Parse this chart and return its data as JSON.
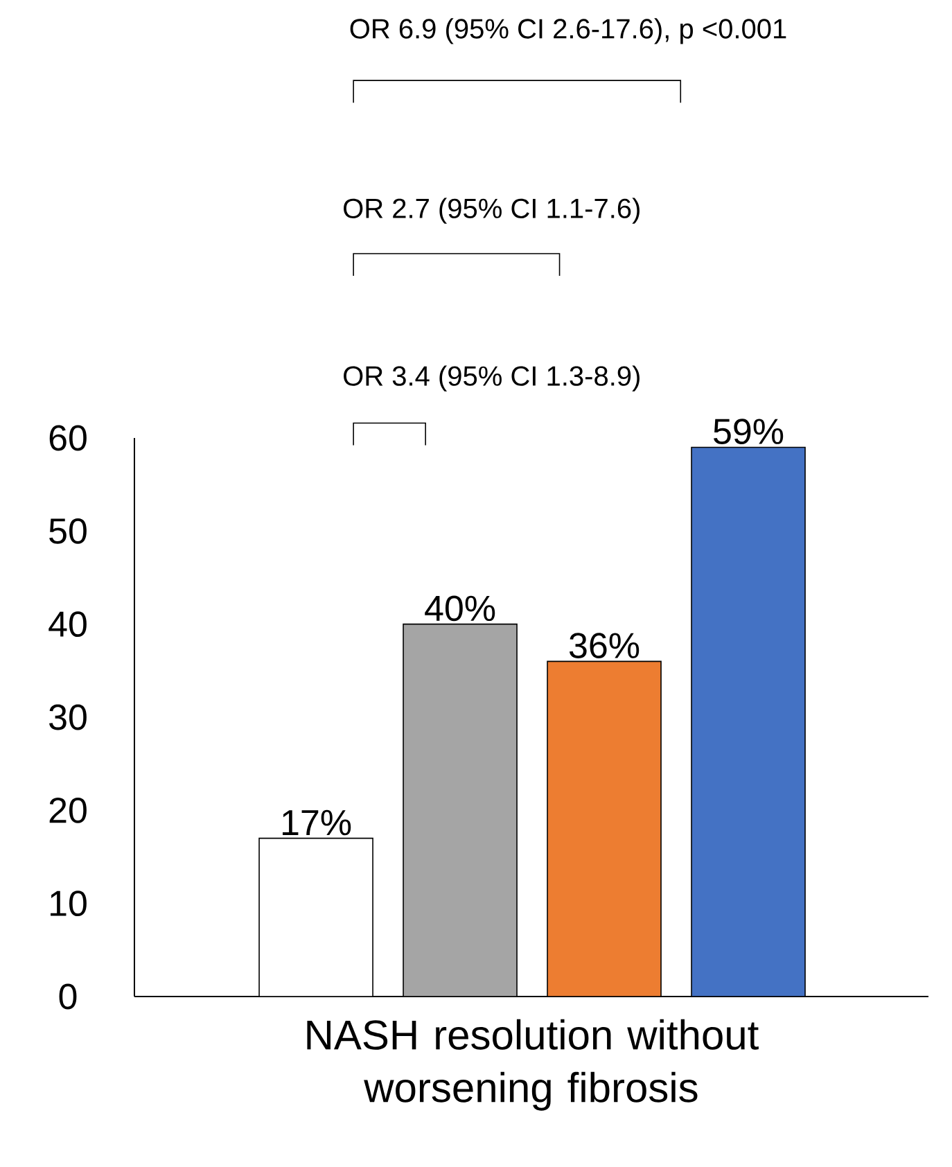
{
  "chart_data": {
    "type": "bar",
    "categories": [
      null,
      null,
      null,
      null
    ],
    "values": [
      17,
      40,
      36,
      59
    ],
    "colors": [
      "#ffffff",
      "#a5a5a5",
      "#ed7d31",
      "#4472c4"
    ],
    "value_labels": [
      "17%",
      "40%",
      "36%",
      "59%"
    ],
    "xlabel": "NASH resolution without worsening fibrosis",
    "ylim": [
      0,
      60
    ],
    "yticks": [
      0,
      10,
      20,
      30,
      40,
      50,
      60
    ],
    "annotations": [
      "OR 6.9 (95% CI 2.6-17.6), p <0.001",
      "OR 2.7 (95% CI 1.1-7.6)",
      "OR 3.4 (95% CI 1.3-8.9)"
    ]
  }
}
